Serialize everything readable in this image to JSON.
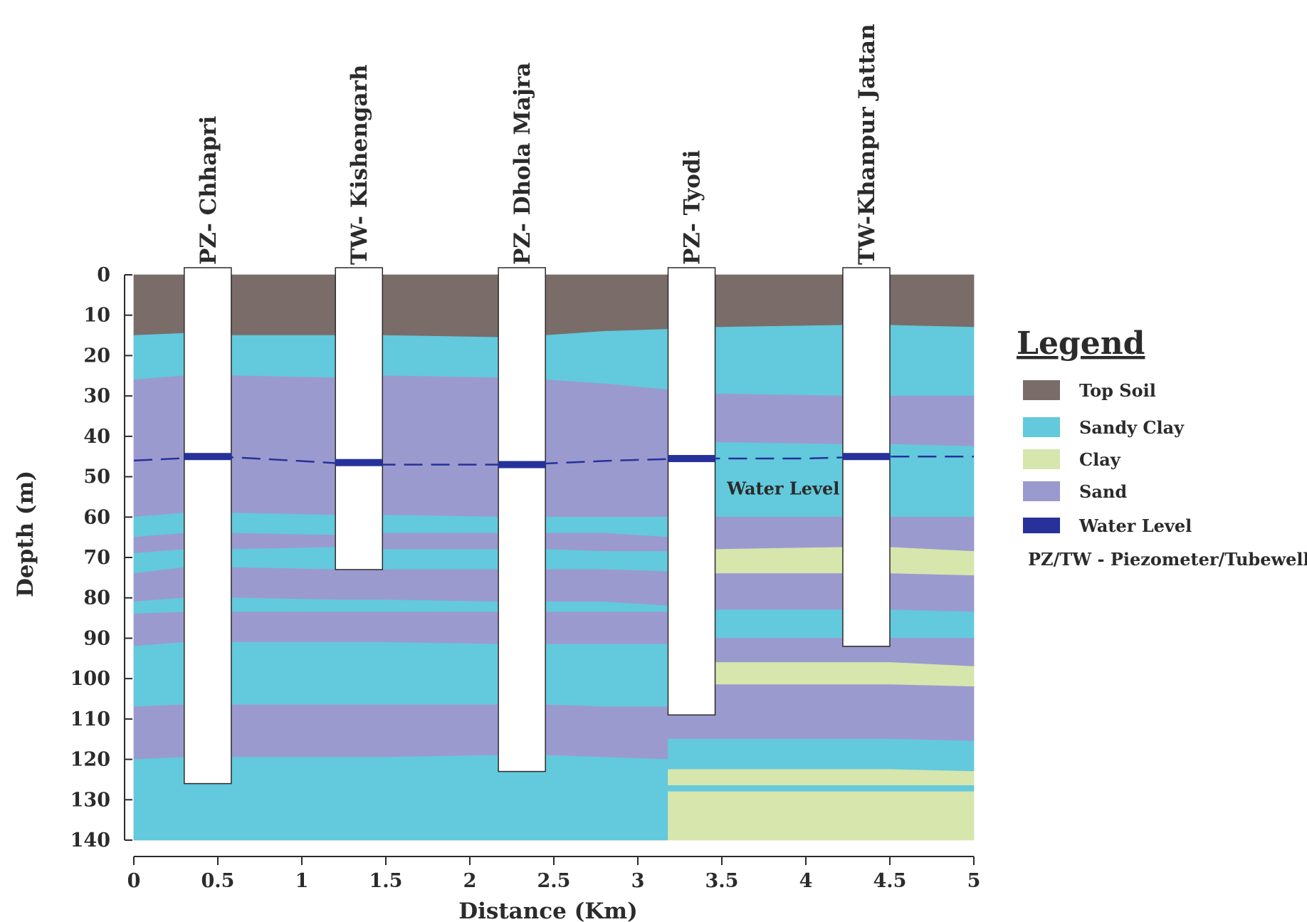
{
  "colors": {
    "top_soil": "#7a6c69",
    "sandy_clay": "#63c9dc",
    "clay": "#d6e6ad",
    "sand": "#9b9acf",
    "water_level": "#27319a",
    "well": "#ffffff",
    "axis": "#2b2b2b"
  },
  "chart_data": {
    "type": "cross-section",
    "xlabel": "Distance (Km)",
    "ylabel": "Depth (m)",
    "xlim": [
      0,
      5
    ],
    "ylim": [
      0,
      140
    ],
    "x_ticks": [
      "0",
      "0.5",
      "1",
      "1.5",
      "2",
      "2.5",
      "3",
      "3.5",
      "4",
      "4.5",
      "5"
    ],
    "y_ticks": [
      "0",
      "10",
      "20",
      "30",
      "40",
      "50",
      "60",
      "70",
      "80",
      "90",
      "100",
      "110",
      "120",
      "130",
      "140"
    ],
    "wells": [
      {
        "label": "PZ- Chhapri",
        "x_from": 0.3,
        "x_to": 0.58,
        "depth": 126,
        "water_level": 45
      },
      {
        "label": "TW- Kishengarh",
        "x_from": 1.2,
        "x_to": 1.48,
        "depth": 73,
        "water_level": 46.5
      },
      {
        "label": "PZ- Dhola Majra",
        "x_from": 2.17,
        "x_to": 2.45,
        "depth": 123,
        "water_level": 47
      },
      {
        "label": "PZ- Tyodi",
        "x_from": 3.18,
        "x_to": 3.46,
        "depth": 109,
        "water_level": 45.5
      },
      {
        "label": "TW-Khanpur Jattan",
        "x_from": 4.22,
        "x_to": 4.5,
        "depth": 92,
        "water_level": 45
      }
    ],
    "water_level_line": {
      "x": [
        0,
        0.5,
        0.95,
        1.35,
        2.3,
        2.85,
        3.3,
        4.0,
        4.4,
        5.0
      ],
      "depth": [
        46,
        45,
        46,
        47,
        47,
        46,
        45.5,
        45.5,
        45,
        45
      ]
    },
    "sections": [
      {
        "x": [
          0,
          0.3,
          0.58,
          1.2,
          1.48,
          2.17,
          2.45,
          2.8,
          3.18
        ],
        "layers": [
          {
            "type": "top_soil",
            "top": [
              0,
              0,
              0,
              0,
              0,
              0,
              0,
              0,
              0
            ],
            "bottom": [
              15,
              14.5,
              15,
              15,
              15,
              15.5,
              15,
              14,
              13.5
            ]
          },
          {
            "type": "sandy_clay",
            "top": [
              15,
              14.5,
              15,
              15,
              15,
              15.5,
              15,
              14,
              13.5
            ],
            "bottom": [
              26,
              25,
              25,
              25.5,
              25,
              25.5,
              26,
              27,
              28.5
            ]
          },
          {
            "type": "sand",
            "top": [
              26,
              25,
              25,
              25.5,
              25,
              25.5,
              26,
              27,
              28.5
            ],
            "bottom": [
              60,
              59,
              59,
              59.5,
              59.5,
              60,
              60,
              60,
              60
            ]
          },
          {
            "type": "sandy_clay",
            "top": [
              60,
              59,
              59,
              59.5,
              59.5,
              60,
              60,
              60,
              60
            ],
            "bottom": [
              65,
              64,
              64,
              64.5,
              64,
              64,
              64,
              64,
              65
            ]
          },
          {
            "type": "sand",
            "top": [
              65,
              64,
              64,
              64.5,
              64,
              64,
              64,
              64,
              65
            ],
            "bottom": [
              69,
              68,
              68,
              67.5,
              68,
              68,
              68,
              68.5,
              68.5
            ]
          },
          {
            "type": "sandy_clay",
            "top": [
              69,
              68,
              68,
              67.5,
              68,
              68,
              68,
              68.5,
              68.5
            ],
            "bottom": [
              74,
              72.5,
              72.5,
              73,
              73,
              73,
              73,
              73,
              73.5
            ]
          },
          {
            "type": "sand",
            "top": [
              74,
              72.5,
              72.5,
              73,
              73,
              73,
              73,
              73,
              73.5
            ],
            "bottom": [
              81,
              80,
              80,
              80.5,
              80.5,
              81,
              81,
              81,
              82
            ]
          },
          {
            "type": "sandy_clay",
            "top": [
              81,
              80,
              80,
              80.5,
              80.5,
              81,
              81,
              81,
              82
            ],
            "bottom": [
              84,
              83.5,
              83.5,
              83.5,
              83.5,
              83.5,
              83.5,
              83.5,
              83.5
            ]
          },
          {
            "type": "sand",
            "top": [
              84,
              83.5,
              83.5,
              83.5,
              83.5,
              83.5,
              83.5,
              83.5,
              83.5
            ],
            "bottom": [
              92,
              91,
              91,
              91,
              91,
              91.5,
              91.5,
              91.5,
              91.5
            ]
          },
          {
            "type": "sandy_clay",
            "top": [
              92,
              91,
              91,
              91,
              91,
              91.5,
              91.5,
              91.5,
              91.5
            ],
            "bottom": [
              107,
              106.5,
              106.5,
              106.5,
              106.5,
              106.5,
              106.5,
              107,
              107
            ]
          },
          {
            "type": "sand",
            "top": [
              107,
              106.5,
              106.5,
              106.5,
              106.5,
              106.5,
              106.5,
              107,
              107
            ],
            "bottom": [
              120,
              119.5,
              119.5,
              119.5,
              119.5,
              119,
              119,
              119.5,
              120
            ]
          },
          {
            "type": "sandy_clay",
            "top": [
              120,
              119.5,
              119.5,
              119.5,
              119.5,
              119,
              119,
              119.5,
              120
            ],
            "bottom": [
              140,
              140,
              140,
              140,
              140,
              140,
              140,
              140,
              140
            ]
          }
        ]
      },
      {
        "x": [
          3.18,
          3.46,
          4.22,
          4.5,
          5.0
        ],
        "layers": [
          {
            "type": "top_soil",
            "top": [
              0,
              0,
              0,
              0,
              0
            ],
            "bottom": [
              13.5,
              13,
              12.5,
              12.5,
              13
            ]
          },
          {
            "type": "sandy_clay",
            "top": [
              13.5,
              13,
              12.5,
              12.5,
              13
            ],
            "bottom": [
              28.5,
              29.5,
              30,
              30,
              30
            ]
          },
          {
            "type": "sand",
            "top": [
              28.5,
              29.5,
              30,
              30,
              30
            ],
            "bottom": [
              41.5,
              41.5,
              42,
              42,
              42.5
            ]
          },
          {
            "type": "sandy_clay",
            "top": [
              41.5,
              41.5,
              42,
              42,
              42.5
            ],
            "bottom": [
              59.5,
              60,
              60,
              60,
              60
            ]
          },
          {
            "type": "sand",
            "top": [
              59.5,
              60,
              60,
              60,
              60
            ],
            "bottom": [
              68,
              68,
              67.5,
              67.5,
              68.5
            ]
          },
          {
            "type": "clay",
            "top": [
              68,
              68,
              67.5,
              67.5,
              68.5
            ],
            "bottom": [
              74,
              74,
              74,
              74,
              74.5
            ]
          },
          {
            "type": "sand",
            "top": [
              74,
              74,
              74,
              74,
              74.5
            ],
            "bottom": [
              83,
              83,
              83,
              83,
              83.5
            ]
          },
          {
            "type": "sandy_clay",
            "top": [
              83,
              83,
              83,
              83,
              83.5
            ],
            "bottom": [
              90,
              90,
              90,
              90,
              90
            ]
          },
          {
            "type": "sand",
            "top": [
              90,
              90,
              90,
              90,
              90
            ],
            "bottom": [
              96,
              96,
              96,
              96,
              97
            ]
          },
          {
            "type": "clay",
            "top": [
              96,
              96,
              96,
              96,
              97
            ],
            "bottom": [
              101,
              101.5,
              101.5,
              101.5,
              102
            ]
          },
          {
            "type": "sand",
            "top": [
              101,
              101.5,
              101.5,
              101.5,
              102
            ],
            "bottom": [
              115,
              115,
              115,
              115,
              115.5
            ]
          },
          {
            "type": "sandy_clay",
            "top": [
              115,
              115,
              115,
              115,
              115.5
            ],
            "bottom": [
              122.5,
              122.5,
              122.5,
              122.5,
              123
            ]
          },
          {
            "type": "clay",
            "top": [
              122.5,
              122.5,
              122.5,
              122.5,
              123
            ],
            "bottom": [
              126.5,
              126.5,
              126.5,
              126.5,
              126.5
            ]
          },
          {
            "type": "sandy_clay",
            "top": [
              126.5,
              126.5,
              126.5,
              126.5,
              126.5
            ],
            "bottom": [
              128,
              128,
              128,
              128,
              128
            ]
          },
          {
            "type": "clay",
            "top": [
              128,
              128,
              128,
              128,
              128
            ],
            "bottom": [
              140,
              140,
              140,
              140,
              140
            ]
          }
        ]
      }
    ],
    "annotation": {
      "text": "Water Level",
      "x": 3.53,
      "depth": 53
    }
  },
  "legend": {
    "title": "Legend",
    "items": [
      {
        "key": "top_soil",
        "label": "Top Soil"
      },
      {
        "key": "sandy_clay",
        "label": "Sandy Clay"
      },
      {
        "key": "clay",
        "label": "Clay"
      },
      {
        "key": "sand",
        "label": "Sand"
      },
      {
        "key": "water_level",
        "label": "Water Level"
      }
    ],
    "note": "PZ/TW - Piezometer/Tubewell"
  }
}
